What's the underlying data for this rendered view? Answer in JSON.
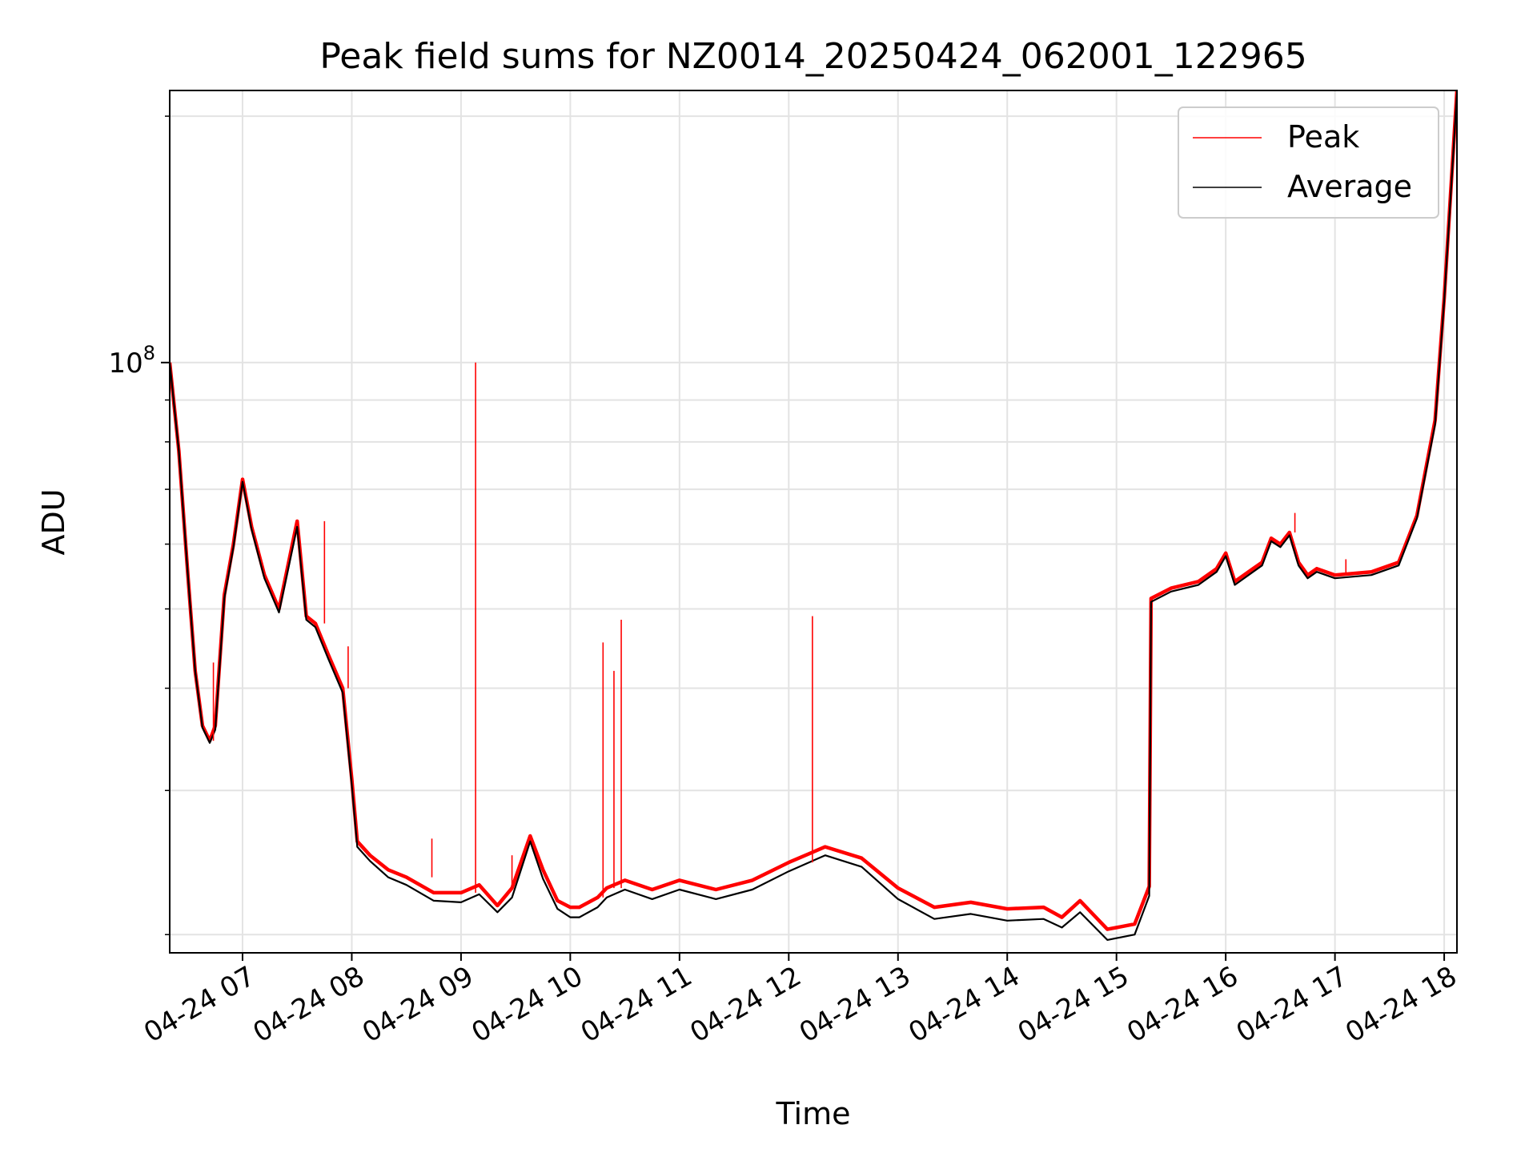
{
  "chart_data": {
    "type": "line",
    "title": "Peak field sums for NZ0014_20250424_062001_122965",
    "xlabel": "Time",
    "ylabel": "ADU",
    "yscale": "log",
    "grid": true,
    "legend_placement": "top-right",
    "x_tick_labels": [
      "04-24 07",
      "04-24 08",
      "04-24 09",
      "04-24 10",
      "04-24 11",
      "04-24 12",
      "04-24 13",
      "04-24 14",
      "04-24 15",
      "04-24 16",
      "04-24 17",
      "04-24 18"
    ],
    "x_ticks": [
      "2025-04-24T07:00",
      "2025-04-24T08:00",
      "2025-04-24T09:00",
      "2025-04-24T10:00",
      "2025-04-24T11:00",
      "2025-04-24T12:00",
      "2025-04-24T13:00",
      "2025-04-24T14:00",
      "2025-04-24T15:00",
      "2025-04-24T16:00",
      "2025-04-24T17:00",
      "2025-04-24T18:00"
    ],
    "xlim": [
      "2025-04-24T06:20",
      "2025-04-24T18:07"
    ],
    "y_tick_label": "10^8",
    "y_tick_value": 100000000,
    "ylim": [
      19000000,
      215000000
    ],
    "series": [
      {
        "name": "Peak",
        "color": "#ff0000",
        "x": [
          "2025-04-24T06:20",
          "2025-04-24T06:25",
          "2025-04-24T06:30",
          "2025-04-24T06:34",
          "2025-04-24T06:38",
          "2025-04-24T06:42",
          "2025-04-24T06:45",
          "2025-04-24T06:50",
          "2025-04-24T06:55",
          "2025-04-24T07:00",
          "2025-04-24T07:05",
          "2025-04-24T07:12",
          "2025-04-24T07:20",
          "2025-04-24T07:30",
          "2025-04-24T07:35",
          "2025-04-24T07:40",
          "2025-04-24T07:47",
          "2025-04-24T07:55",
          "2025-04-24T08:00",
          "2025-04-24T08:03",
          "2025-04-24T08:10",
          "2025-04-24T08:20",
          "2025-04-24T08:30",
          "2025-04-24T08:45",
          "2025-04-24T09:00",
          "2025-04-24T09:10",
          "2025-04-24T09:20",
          "2025-04-24T09:28",
          "2025-04-24T09:38",
          "2025-04-24T09:45",
          "2025-04-24T09:53",
          "2025-04-24T10:00",
          "2025-04-24T10:05",
          "2025-04-24T10:15",
          "2025-04-24T10:20",
          "2025-04-24T10:30",
          "2025-04-24T10:45",
          "2025-04-24T11:00",
          "2025-04-24T11:20",
          "2025-04-24T11:40",
          "2025-04-24T12:00",
          "2025-04-24T12:20",
          "2025-04-24T12:40",
          "2025-04-24T13:00",
          "2025-04-24T13:20",
          "2025-04-24T13:40",
          "2025-04-24T14:00",
          "2025-04-24T14:20",
          "2025-04-24T14:30",
          "2025-04-24T14:40",
          "2025-04-24T14:55",
          "2025-04-24T15:10",
          "2025-04-24T15:18",
          "2025-04-24T15:19",
          "2025-04-24T15:30",
          "2025-04-24T15:45",
          "2025-04-24T15:55",
          "2025-04-24T16:00",
          "2025-04-24T16:05",
          "2025-04-24T16:15",
          "2025-04-24T16:20",
          "2025-04-24T16:25",
          "2025-04-24T16:30",
          "2025-04-24T16:35",
          "2025-04-24T16:40",
          "2025-04-24T16:45",
          "2025-04-24T16:50",
          "2025-04-24T17:00",
          "2025-04-24T17:20",
          "2025-04-24T17:35",
          "2025-04-24T17:45",
          "2025-04-24T17:55",
          "2025-04-24T18:00",
          "2025-04-24T18:07"
        ],
        "y": [
          100000000,
          78000000,
          55000000,
          42000000,
          36000000,
          34500000,
          36000000,
          52000000,
          60000000,
          72000000,
          63000000,
          55000000,
          50000000,
          64000000,
          49000000,
          48000000,
          44000000,
          40000000,
          31000000,
          26000000,
          25000000,
          24000000,
          23500000,
          22500000,
          22500000,
          23000000,
          21700000,
          22800000,
          26400000,
          24000000,
          22000000,
          21600000,
          21600000,
          22200000,
          22800000,
          23300000,
          22700000,
          23300000,
          22700000,
          23300000,
          24500000,
          25600000,
          24800000,
          22800000,
          21600000,
          21900000,
          21500000,
          21600000,
          21000000,
          22000000,
          20300000,
          20600000,
          22900000,
          51500000,
          53000000,
          54000000,
          56000000,
          58500000,
          54000000,
          56000000,
          57000000,
          61000000,
          60000000,
          62000000,
          57000000,
          55000000,
          56000000,
          55000000,
          55500000,
          57000000,
          65000000,
          85000000,
          120000000,
          215000000
        ]
      },
      {
        "name": "Average",
        "color": "#000000",
        "x": [
          "2025-04-24T06:20",
          "2025-04-24T06:25",
          "2025-04-24T06:30",
          "2025-04-24T06:34",
          "2025-04-24T06:38",
          "2025-04-24T06:42",
          "2025-04-24T06:45",
          "2025-04-24T06:50",
          "2025-04-24T06:55",
          "2025-04-24T07:00",
          "2025-04-24T07:05",
          "2025-04-24T07:12",
          "2025-04-24T07:20",
          "2025-04-24T07:30",
          "2025-04-24T07:35",
          "2025-04-24T07:40",
          "2025-04-24T07:47",
          "2025-04-24T07:55",
          "2025-04-24T08:00",
          "2025-04-24T08:03",
          "2025-04-24T08:10",
          "2025-04-24T08:20",
          "2025-04-24T08:30",
          "2025-04-24T08:45",
          "2025-04-24T09:00",
          "2025-04-24T09:10",
          "2025-04-24T09:20",
          "2025-04-24T09:28",
          "2025-04-24T09:38",
          "2025-04-24T09:45",
          "2025-04-24T09:53",
          "2025-04-24T10:00",
          "2025-04-24T10:05",
          "2025-04-24T10:15",
          "2025-04-24T10:20",
          "2025-04-24T10:30",
          "2025-04-24T10:45",
          "2025-04-24T11:00",
          "2025-04-24T11:20",
          "2025-04-24T11:40",
          "2025-04-24T12:00",
          "2025-04-24T12:20",
          "2025-04-24T12:40",
          "2025-04-24T13:00",
          "2025-04-24T13:20",
          "2025-04-24T13:40",
          "2025-04-24T14:00",
          "2025-04-24T14:20",
          "2025-04-24T14:30",
          "2025-04-24T14:40",
          "2025-04-24T14:55",
          "2025-04-24T15:10",
          "2025-04-24T15:18",
          "2025-04-24T15:19",
          "2025-04-24T15:30",
          "2025-04-24T15:45",
          "2025-04-24T15:55",
          "2025-04-24T16:00",
          "2025-04-24T16:05",
          "2025-04-24T16:15",
          "2025-04-24T16:20",
          "2025-04-24T16:25",
          "2025-04-24T16:30",
          "2025-04-24T16:35",
          "2025-04-24T16:40",
          "2025-04-24T16:45",
          "2025-04-24T16:50",
          "2025-04-24T17:00",
          "2025-04-24T17:20",
          "2025-04-24T17:35",
          "2025-04-24T17:45",
          "2025-04-24T17:55",
          "2025-04-24T18:00",
          "2025-04-24T18:07"
        ],
        "y": [
          100000000,
          78000000,
          55000000,
          42000000,
          35800000,
          34300000,
          35600000,
          51500000,
          59500000,
          71500000,
          62500000,
          54500000,
          49500000,
          63000000,
          48500000,
          47500000,
          43500000,
          39500000,
          30500000,
          25600000,
          24600000,
          23500000,
          23000000,
          22000000,
          21900000,
          22400000,
          21300000,
          22200000,
          26000000,
          23400000,
          21500000,
          21000000,
          21000000,
          21600000,
          22200000,
          22700000,
          22100000,
          22700000,
          22100000,
          22700000,
          23900000,
          25000000,
          24200000,
          22100000,
          20900000,
          21200000,
          20800000,
          20900000,
          20400000,
          21300000,
          19700000,
          20000000,
          22300000,
          51000000,
          52500000,
          53500000,
          55500000,
          58000000,
          53500000,
          55500000,
          56500000,
          60500000,
          59500000,
          61500000,
          56500000,
          54500000,
          55500000,
          54500000,
          55000000,
          56500000,
          64500000,
          84000000,
          119000000,
          213000000
        ]
      }
    ],
    "spikes": [
      {
        "series": "Peak",
        "x": "2025-04-24T06:44",
        "y": 43000000
      },
      {
        "series": "Peak",
        "x": "2025-04-24T07:45",
        "y": 64000000
      },
      {
        "series": "Peak",
        "x": "2025-04-24T07:58",
        "y": 45000000
      },
      {
        "series": "Peak",
        "x": "2025-04-24T08:44",
        "y": 26200000
      },
      {
        "series": "Peak",
        "x": "2025-04-24T09:08",
        "y": 100000000
      },
      {
        "series": "Peak",
        "x": "2025-04-24T09:28",
        "y": 25000000
      },
      {
        "series": "Peak",
        "x": "2025-04-24T10:18",
        "y": 45500000
      },
      {
        "series": "Peak",
        "x": "2025-04-24T10:24",
        "y": 42000000
      },
      {
        "series": "Peak",
        "x": "2025-04-24T10:28",
        "y": 48500000
      },
      {
        "series": "Peak",
        "x": "2025-04-24T12:13",
        "y": 49000000
      },
      {
        "series": "Peak",
        "x": "2025-04-24T16:38",
        "y": 65500000
      },
      {
        "series": "Peak",
        "x": "2025-04-24T17:06",
        "y": 57500000
      }
    ]
  }
}
